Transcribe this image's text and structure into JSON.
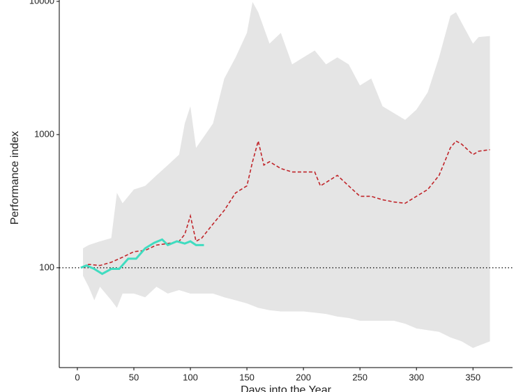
{
  "chart_data": {
    "type": "line",
    "ylabel": "Performance index",
    "xlabel": "Days into the Year",
    "log_y": true,
    "xlim": [
      -16,
      385
    ],
    "ylim": [
      17.8,
      10000
    ],
    "xticks": [
      0,
      50,
      100,
      150,
      200,
      250,
      300,
      350
    ],
    "yticks": [
      100,
      1000,
      10000
    ],
    "hline": 100,
    "band": {
      "color": "#e5e5e5",
      "x": [
        5,
        10,
        15,
        20,
        30,
        35,
        40,
        50,
        60,
        70,
        80,
        90,
        95,
        100,
        105,
        120,
        130,
        140,
        150,
        155,
        160,
        170,
        180,
        190,
        200,
        210,
        220,
        230,
        240,
        250,
        260,
        270,
        280,
        290,
        300,
        310,
        320,
        330,
        335,
        340,
        350,
        355,
        365
      ],
      "upper": [
        140,
        148,
        153,
        158,
        167,
        365,
        305,
        387,
        412,
        494,
        590,
        707,
        1210,
        1630,
        795,
        1210,
        2640,
        3800,
        5800,
        9900,
        8300,
        4820,
        5800,
        3370,
        3800,
        4280,
        3370,
        3800,
        3370,
        2340,
        2640,
        1630,
        1450,
        1290,
        1540,
        2080,
        3800,
        7800,
        8300,
        6900,
        4820,
        5400,
        5500
      ],
      "lower": [
        87,
        72,
        57,
        72,
        57,
        50,
        64,
        64,
        60,
        72,
        64,
        68,
        66,
        64,
        64,
        64,
        60,
        57,
        54,
        52,
        50,
        48,
        47,
        47,
        47,
        46,
        45,
        43,
        42,
        40,
        40,
        40,
        40,
        38,
        35,
        34,
        33,
        30,
        29,
        28,
        25,
        26,
        28
      ]
    },
    "series": [
      {
        "color": "#c0252a",
        "dash": true,
        "x": [
          5,
          10,
          20,
          30,
          40,
          50,
          60,
          70,
          80,
          90,
          95,
          100,
          105,
          110,
          120,
          130,
          140,
          150,
          155,
          160,
          165,
          170,
          180,
          190,
          200,
          210,
          215,
          220,
          230,
          240,
          250,
          260,
          270,
          280,
          290,
          300,
          310,
          320,
          330,
          335,
          340,
          350,
          355,
          365
        ],
        "values": [
          100,
          106,
          104,
          110,
          120,
          132,
          135,
          148,
          152,
          158,
          178,
          245,
          158,
          167,
          213,
          270,
          365,
          412,
          626,
          895,
          590,
          626,
          556,
          524,
          524,
          524,
          412,
          437,
          494,
          412,
          344,
          344,
          324,
          312,
          305,
          344,
          387,
          494,
          795,
          895,
          847,
          707,
          750,
          770
        ]
      },
      {
        "color": "#40dcc0",
        "dash": false,
        "x": [
          3,
          8,
          15,
          22,
          30,
          37,
          45,
          52,
          60,
          68,
          75,
          80,
          88,
          95,
          100,
          105,
          112
        ],
        "values": [
          100,
          104,
          98,
          90,
          98,
          98,
          117,
          117,
          140,
          154,
          163,
          148,
          158,
          152,
          158,
          148,
          148
        ]
      }
    ]
  }
}
